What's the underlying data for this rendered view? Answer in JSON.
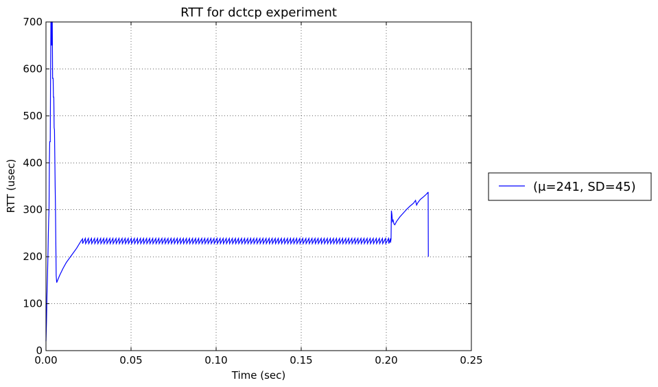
{
  "chart_data": {
    "type": "line",
    "title": "RTT for dctcp experiment",
    "xlabel": "Time (sec)",
    "ylabel": "RTT (usec)",
    "xlim": [
      0,
      0.25
    ],
    "ylim": [
      0,
      700
    ],
    "xticks": [
      "0.00",
      "0.05",
      "0.10",
      "0.15",
      "0.20",
      "0.25"
    ],
    "yticks": [
      "0",
      "100",
      "200",
      "300",
      "400",
      "500",
      "600",
      "700"
    ],
    "grid": true,
    "legend_position": "outside-right",
    "series": [
      {
        "name": "(μ=241, SD=45)",
        "color": "#0000ff",
        "segments": [
          {
            "kind": "points",
            "points": [
              [
                0.0,
                20
              ],
              [
                0.0003,
                60
              ],
              [
                0.0006,
                120
              ],
              [
                0.0009,
                160
              ],
              [
                0.0012,
                210
              ],
              [
                0.0014,
                250
              ],
              [
                0.0016,
                280
              ],
              [
                0.0018,
                300
              ],
              [
                0.002,
                400
              ],
              [
                0.0022,
                445
              ],
              [
                0.0025,
                445
              ],
              [
                0.0027,
                580
              ],
              [
                0.0029,
                700
              ],
              [
                0.0031,
                700
              ],
              [
                0.0033,
                650
              ],
              [
                0.0035,
                700
              ],
              [
                0.0037,
                700
              ],
              [
                0.0039,
                580
              ],
              [
                0.0042,
                580
              ],
              [
                0.0044,
                540
              ],
              [
                0.0046,
                540
              ],
              [
                0.0048,
                475
              ],
              [
                0.005,
                470
              ],
              [
                0.0052,
                410
              ],
              [
                0.0054,
                350
              ],
              [
                0.0056,
                300
              ],
              [
                0.0058,
                230
              ],
              [
                0.006,
                160
              ],
              [
                0.0063,
                145
              ],
              [
                0.008,
                160
              ],
              [
                0.01,
                175
              ],
              [
                0.012,
                188
              ],
              [
                0.015,
                203
              ],
              [
                0.018,
                218
              ],
              [
                0.0205,
                233
              ],
              [
                0.0215,
                238
              ]
            ]
          },
          {
            "kind": "sawtooth",
            "start": 0.0215,
            "end": 0.2025,
            "period": 0.0018,
            "low": 228,
            "high": 239
          },
          {
            "kind": "points",
            "points": [
              [
                0.2025,
                230
              ],
              [
                0.2028,
                238
              ],
              [
                0.203,
                298
              ],
              [
                0.2033,
                290
              ],
              [
                0.2036,
                275
              ],
              [
                0.204,
                278
              ],
              [
                0.2045,
                270
              ],
              [
                0.205,
                268
              ],
              [
                0.206,
                275
              ],
              [
                0.208,
                285
              ],
              [
                0.21,
                293
              ],
              [
                0.212,
                301
              ],
              [
                0.214,
                308
              ],
              [
                0.216,
                314
              ],
              [
                0.2172,
                320
              ],
              [
                0.2178,
                310
              ],
              [
                0.2185,
                315
              ],
              [
                0.22,
                322
              ],
              [
                0.222,
                328
              ],
              [
                0.2235,
                333
              ],
              [
                0.2245,
                337
              ],
              [
                0.2246,
                337
              ],
              [
                0.2247,
                200
              ]
            ]
          }
        ]
      }
    ]
  }
}
